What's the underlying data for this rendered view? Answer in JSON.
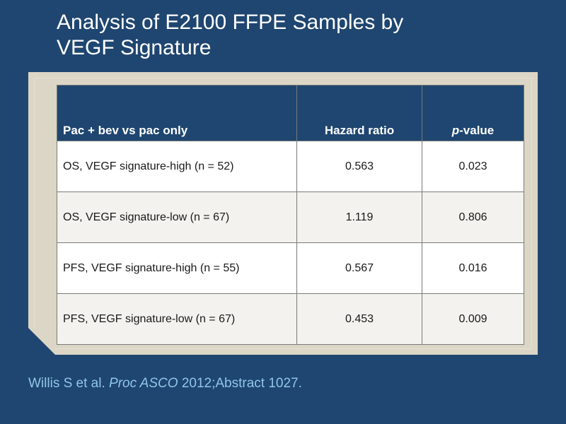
{
  "slide": {
    "title_line1": "Analysis of E2100 FFPE Samples by",
    "title_line2": "VEGF Signature"
  },
  "table": {
    "headers": {
      "comparison": "Pac + bev vs pac only",
      "hazard_ratio": "Hazard ratio",
      "p_value_italic": "p",
      "p_value_rest": "-value"
    },
    "rows": [
      {
        "label": "OS, VEGF signature-high (n = 52)",
        "hazard_ratio": "0.563",
        "p_value": "0.023"
      },
      {
        "label": "OS, VEGF signature-low (n = 67)",
        "hazard_ratio": "1.119",
        "p_value": "0.806"
      },
      {
        "label": "PFS, VEGF signature-high (n = 55)",
        "hazard_ratio": "0.567",
        "p_value": "0.016"
      },
      {
        "label": "PFS, VEGF signature-low (n = 67)",
        "hazard_ratio": "0.453",
        "p_value": "0.009"
      }
    ]
  },
  "citation": {
    "authors": "Willis S et al.",
    "journal": "Proc ASCO",
    "details": "2012;Abstract 1027."
  },
  "colors": {
    "background": "#1f4670",
    "header_fill": "#1f4670",
    "panel": "#dcd6c6",
    "citation_text": "#8fc6e8"
  }
}
